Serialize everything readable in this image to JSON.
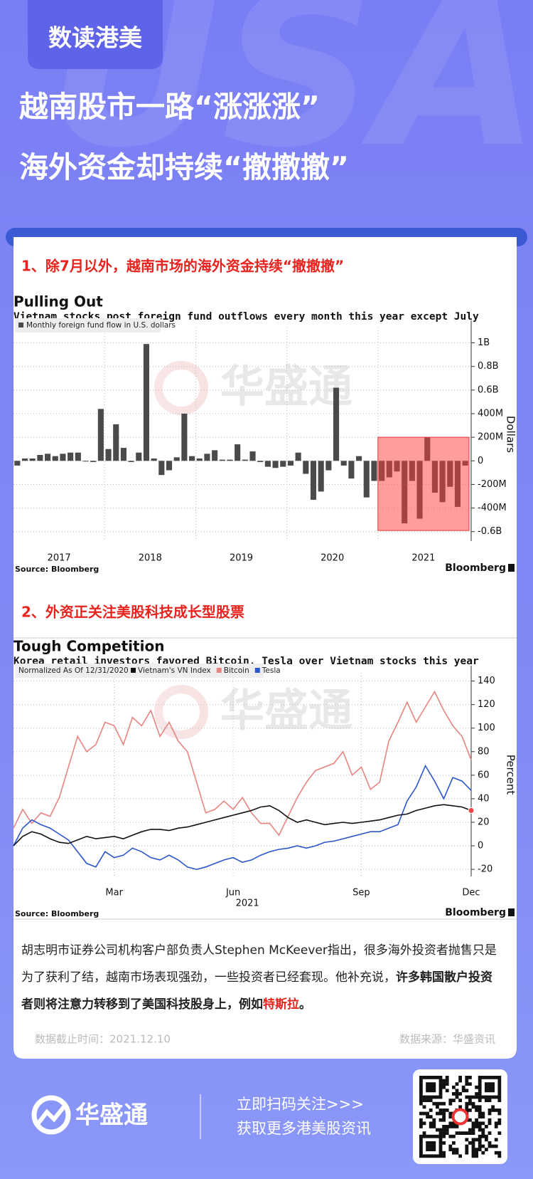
{
  "header": {
    "badge": "数读港美",
    "title_lines": [
      "越南股市一路“涨涨涨”",
      "海外资金却持续“撤撤撤”"
    ],
    "background_text": "USA"
  },
  "sections": [
    {
      "heading": "1、除7月以外，越南市场的海外资金持续“撤撤撤”"
    },
    {
      "heading": "2、外资正关注美股科技成长型股票"
    }
  ],
  "watermark": "华盛通",
  "chart_data": [
    {
      "type": "bar",
      "title": "Pulling Out",
      "subtitle": "Vietnam stocks post foreign fund outflows every month this year except July",
      "categories": [
        null,
        null,
        null,
        null,
        null,
        null,
        "2017",
        null,
        null,
        null,
        null,
        null,
        null,
        null,
        null,
        null,
        null,
        null,
        "2018",
        null,
        null,
        null,
        null,
        null,
        null,
        null,
        null,
        null,
        null,
        null,
        "2019",
        null,
        null,
        null,
        null,
        null,
        null,
        null,
        null,
        null,
        null,
        null,
        "2020",
        null,
        null,
        null,
        null,
        null,
        null,
        null,
        null,
        null,
        null,
        null,
        "2021",
        null,
        null,
        null,
        null,
        null
      ],
      "series": [
        {
          "name": "Monthly foreign fund flow in U.S. dollars",
          "color": "#4a4a4a",
          "values": [
            -40000000,
            20000000,
            20000000,
            50000000,
            60000000,
            40000000,
            60000000,
            70000000,
            70000000,
            -5000000,
            -10000000,
            440000000,
            100000000,
            310000000,
            110000000,
            -10000000,
            70000000,
            990000000,
            20000000,
            -120000000,
            -80000000,
            30000000,
            400000000,
            40000000,
            20000000,
            60000000,
            90000000,
            10000000,
            10000000,
            140000000,
            10000000,
            80000000,
            -10000000,
            -50000000,
            -60000000,
            -50000000,
            -40000000,
            70000000,
            -110000000,
            -330000000,
            -260000000,
            -80000000,
            620000000,
            -40000000,
            -150000000,
            40000000,
            -310000000,
            -170000000,
            -170000000,
            -140000000,
            -90000000,
            -530000000,
            -170000000,
            -490000000,
            200000000,
            -270000000,
            -350000000,
            -220000000,
            -390000000,
            -40000000
          ]
        }
      ],
      "ylabel": "Dollars",
      "ylim": [
        -680000000,
        1130000000
      ],
      "yticks": [
        {
          "value": -600000000,
          "label": "-0.6B"
        },
        {
          "value": -400000000,
          "label": "-400M"
        },
        {
          "value": -200000000,
          "label": "-200M"
        },
        0,
        {
          "value": 200000000,
          "label": "200M"
        },
        {
          "value": 400000000,
          "label": "400M"
        },
        {
          "value": 600000000,
          "label": "0.6B"
        },
        {
          "value": 800000000,
          "label": "0.8B"
        },
        {
          "value": 1000000000,
          "label": "1B"
        }
      ],
      "grid": true,
      "source": "Source: Bloomberg",
      "brand": "Bloomberg"
    },
    {
      "type": "line",
      "title": "Tough Competition",
      "subtitle": "Korea retail investors favored Bitcoin, Tesla over Vietnam stocks this year",
      "legend_note": "Normalized As Of 12/31/2020",
      "categories": [
        null,
        null,
        null,
        null,
        null,
        null,
        null,
        null,
        null,
        null,
        null,
        "Mar",
        null,
        null,
        null,
        null,
        null,
        null,
        null,
        null,
        null,
        null,
        null,
        null,
        "Jun",
        null,
        null,
        null,
        null,
        null,
        null,
        null,
        null,
        null,
        null,
        null,
        null,
        null,
        "Sep",
        null,
        null,
        null,
        null,
        null,
        null,
        null,
        null,
        null,
        null,
        null,
        "Dec"
      ],
      "year_label": "2021",
      "series": [
        {
          "name": "Vietnam's VN Index",
          "color": "#111111",
          "values": [
            0,
            8,
            12,
            10,
            6,
            3,
            2,
            5,
            8,
            6,
            7,
            8,
            6,
            9,
            12,
            14,
            14,
            13,
            15,
            16,
            18,
            20,
            22,
            24,
            26,
            28,
            30,
            33,
            34,
            30,
            24,
            20,
            22,
            20,
            18,
            19,
            20,
            19,
            20,
            21,
            22,
            24,
            26,
            27,
            30,
            32,
            34,
            35,
            34,
            33,
            30
          ]
        },
        {
          "name": "Bitcoin",
          "color": "#e8837f",
          "values": [
            15,
            31,
            19,
            28,
            25,
            41,
            67,
            93,
            80,
            86,
            105,
            102,
            86,
            109,
            102,
            115,
            93,
            105,
            89,
            80,
            54,
            28,
            31,
            38,
            31,
            41,
            28,
            19,
            19,
            9,
            25,
            41,
            54,
            64,
            67,
            70,
            80,
            60,
            67,
            48,
            54,
            89,
            105,
            122,
            105,
            118,
            131,
            115,
            102,
            93,
            73
          ]
        },
        {
          "name": "Tesla",
          "color": "#2b55c8",
          "values": [
            0,
            15,
            22,
            18,
            15,
            10,
            5,
            -5,
            -15,
            -18,
            -5,
            -10,
            -8,
            -2,
            -5,
            -10,
            -12,
            -8,
            -12,
            -18,
            -20,
            -18,
            -15,
            -12,
            -10,
            -14,
            -12,
            -8,
            -5,
            -3,
            -2,
            0,
            -2,
            0,
            3,
            4,
            6,
            8,
            10,
            12,
            12,
            15,
            18,
            38,
            50,
            68,
            55,
            40,
            58,
            55,
            47
          ]
        }
      ],
      "ylabel": "Percent",
      "ylim": [
        -26,
        147
      ],
      "yticks": [
        -20,
        0,
        20,
        40,
        60,
        80,
        100,
        120,
        140
      ],
      "grid": true,
      "source": "Source: Bloomberg",
      "brand": "Bloomberg"
    }
  ],
  "paragraph": {
    "parts": [
      "胡志明市证券公司机构客户部负责人Stephen McKeever指出，很多海外投资者抛售只是为了获利了结，越南市场表现强劲，一些投资者已经套现。他补充说，",
      "许多韩国散户投资者则将注意力转移到了美国科技股身上，例如",
      "特斯拉",
      "。"
    ]
  },
  "footer": {
    "date": "数据截止时间：2021.12.10",
    "source": "数据来源：华盛资讯"
  },
  "bottom": {
    "brand": "华盛通",
    "cta_lines": [
      "立即扫码关注>>>",
      "获取更多港美股资讯"
    ]
  }
}
